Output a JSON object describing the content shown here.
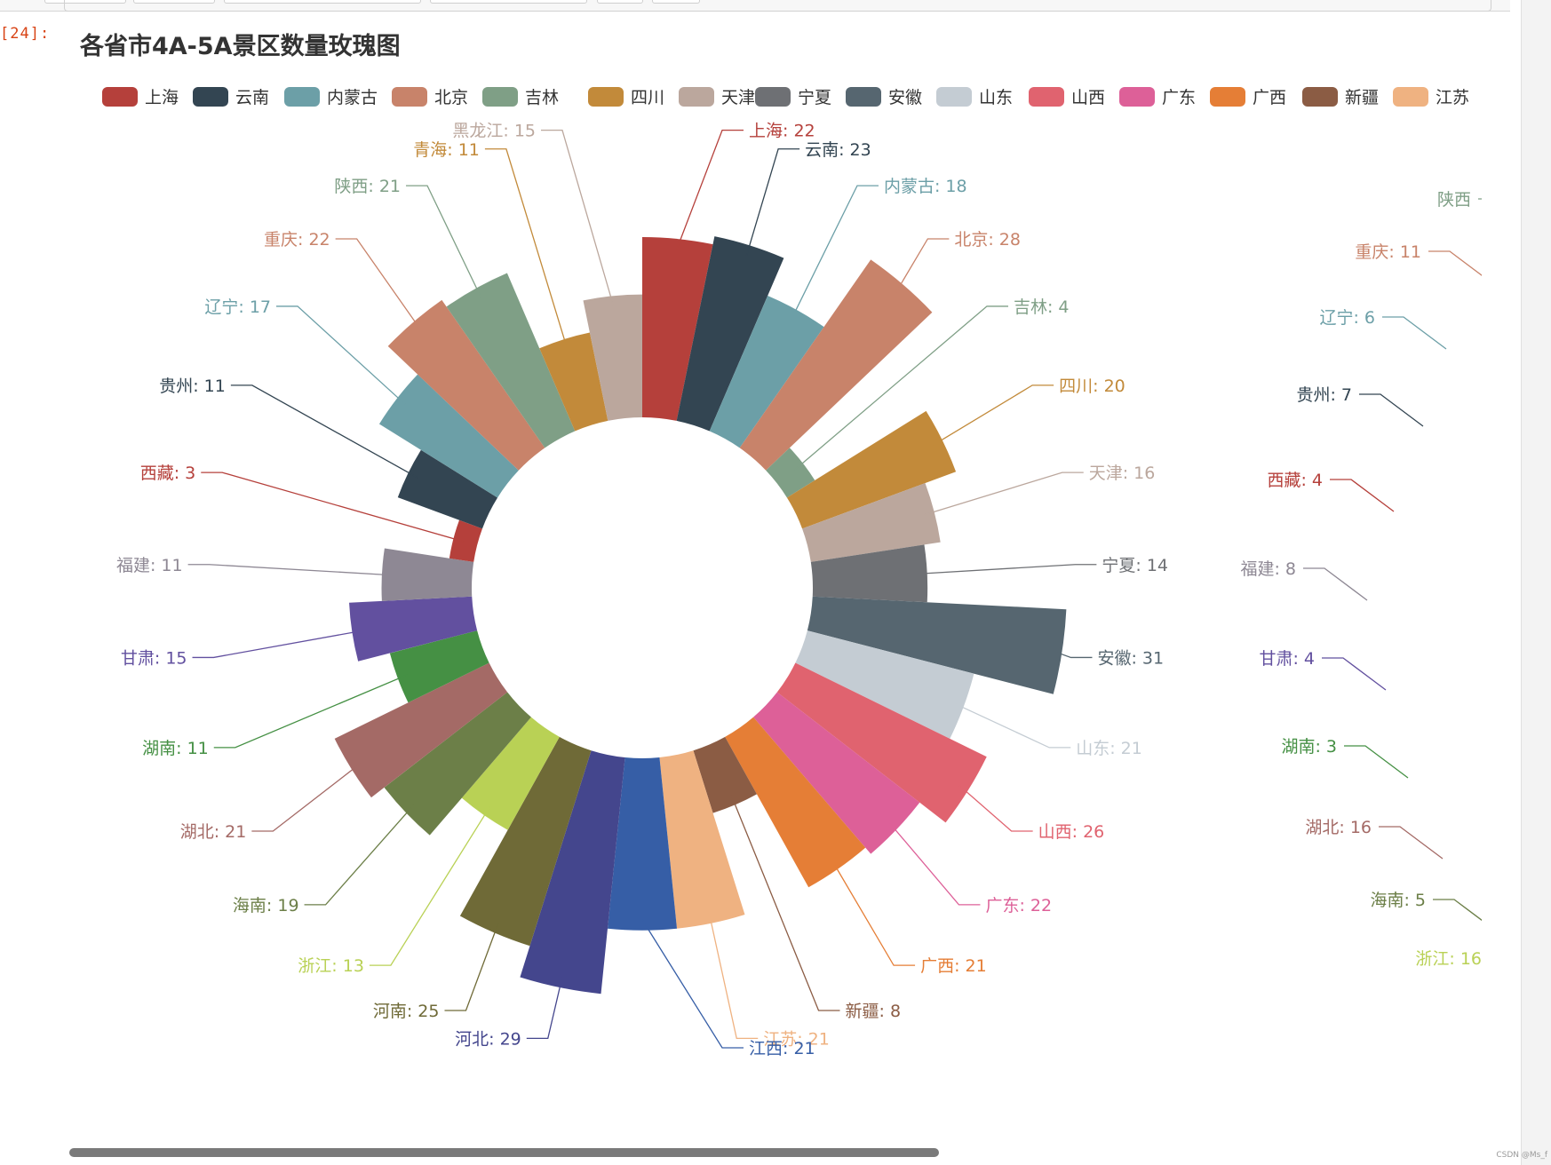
{
  "cell": {
    "prompt": "[24]:"
  },
  "watermark": "CSDN @Ms_f",
  "chart_data": {
    "type": "rose",
    "title": "各省市4A-5A景区数量玫瑰图",
    "legend_position": "top",
    "legend": [
      "上海",
      "云南",
      "内蒙古",
      "北京",
      "吉林",
      "四川",
      "天津",
      "宁夏",
      "安徽",
      "山东",
      "山西",
      "广东",
      "广西",
      "新疆",
      "江苏"
    ],
    "series": [
      {
        "name": "",
        "data": [
          {
            "name": "上海",
            "value": 22,
            "color": "#b5403b"
          },
          {
            "name": "云南",
            "value": 23,
            "color": "#334552"
          },
          {
            "name": "内蒙古",
            "value": 18,
            "color": "#6c9fa7"
          },
          {
            "name": "北京",
            "value": 28,
            "color": "#c8836a"
          },
          {
            "name": "吉林",
            "value": 4,
            "color": "#7f9f86"
          },
          {
            "name": "四川",
            "value": 20,
            "color": "#c28a3a"
          },
          {
            "name": "天津",
            "value": 16,
            "color": "#bba79d"
          },
          {
            "name": "宁夏",
            "value": 14,
            "color": "#6e7074"
          },
          {
            "name": "安徽",
            "value": 31,
            "color": "#566670"
          },
          {
            "name": "山东",
            "value": 21,
            "color": "#c4ccd3"
          },
          {
            "name": "山西",
            "value": 26,
            "color": "#e0636f"
          },
          {
            "name": "广东",
            "value": 22,
            "color": "#dd6098"
          },
          {
            "name": "广西",
            "value": 21,
            "color": "#e57e36"
          },
          {
            "name": "新疆",
            "value": 8,
            "color": "#8b5c44"
          },
          {
            "name": "江苏",
            "value": 21,
            "color": "#efb281"
          },
          {
            "name": "江西",
            "value": 21,
            "color": "#365ea6"
          },
          {
            "name": "河北",
            "value": 29,
            "color": "#44468d"
          },
          {
            "name": "河南",
            "value": 25,
            "color": "#6f6a37"
          },
          {
            "name": "浙江",
            "value": 13,
            "color": "#b9d155"
          },
          {
            "name": "海南",
            "value": 19,
            "color": "#6c7f48"
          },
          {
            "name": "湖北",
            "value": 21,
            "color": "#a46a66"
          },
          {
            "name": "湖南",
            "value": 11,
            "color": "#459044"
          },
          {
            "name": "甘肃",
            "value": 15,
            "color": "#62509f"
          },
          {
            "name": "福建",
            "value": 11,
            "color": "#8e8894"
          },
          {
            "name": "西藏",
            "value": 3,
            "color": "#b5403b"
          },
          {
            "name": "贵州",
            "value": 11,
            "color": "#334552"
          },
          {
            "name": "辽宁",
            "value": 17,
            "color": "#6c9fa7"
          },
          {
            "name": "重庆",
            "value": 22,
            "color": "#c8836a"
          },
          {
            "name": "陕西",
            "value": 21,
            "color": "#7f9f86"
          },
          {
            "name": "青海",
            "value": 11,
            "color": "#c28a3a"
          },
          {
            "name": "黑龙江",
            "value": 15,
            "color": "#bba79d"
          }
        ]
      }
    ],
    "second_chart_partial_labels": [
      {
        "text": "陕西",
        "color": "#7f9f86"
      },
      {
        "text": "重庆: 11",
        "color": "#c8836a"
      },
      {
        "text": "辽宁: 6",
        "color": "#6c9fa7"
      },
      {
        "text": "贵州: 7",
        "color": "#334552"
      },
      {
        "text": "西藏: 4",
        "color": "#b5403b"
      },
      {
        "text": "福建: 8",
        "color": "#8e8894"
      },
      {
        "text": "甘肃: 4",
        "color": "#62509f"
      },
      {
        "text": "湖南: 3",
        "color": "#459044"
      },
      {
        "text": "湖北: 16",
        "color": "#a46a66"
      },
      {
        "text": "海南: 5",
        "color": "#6c7f48"
      },
      {
        "text": "浙江: 16",
        "color": "#b9d155"
      }
    ]
  }
}
